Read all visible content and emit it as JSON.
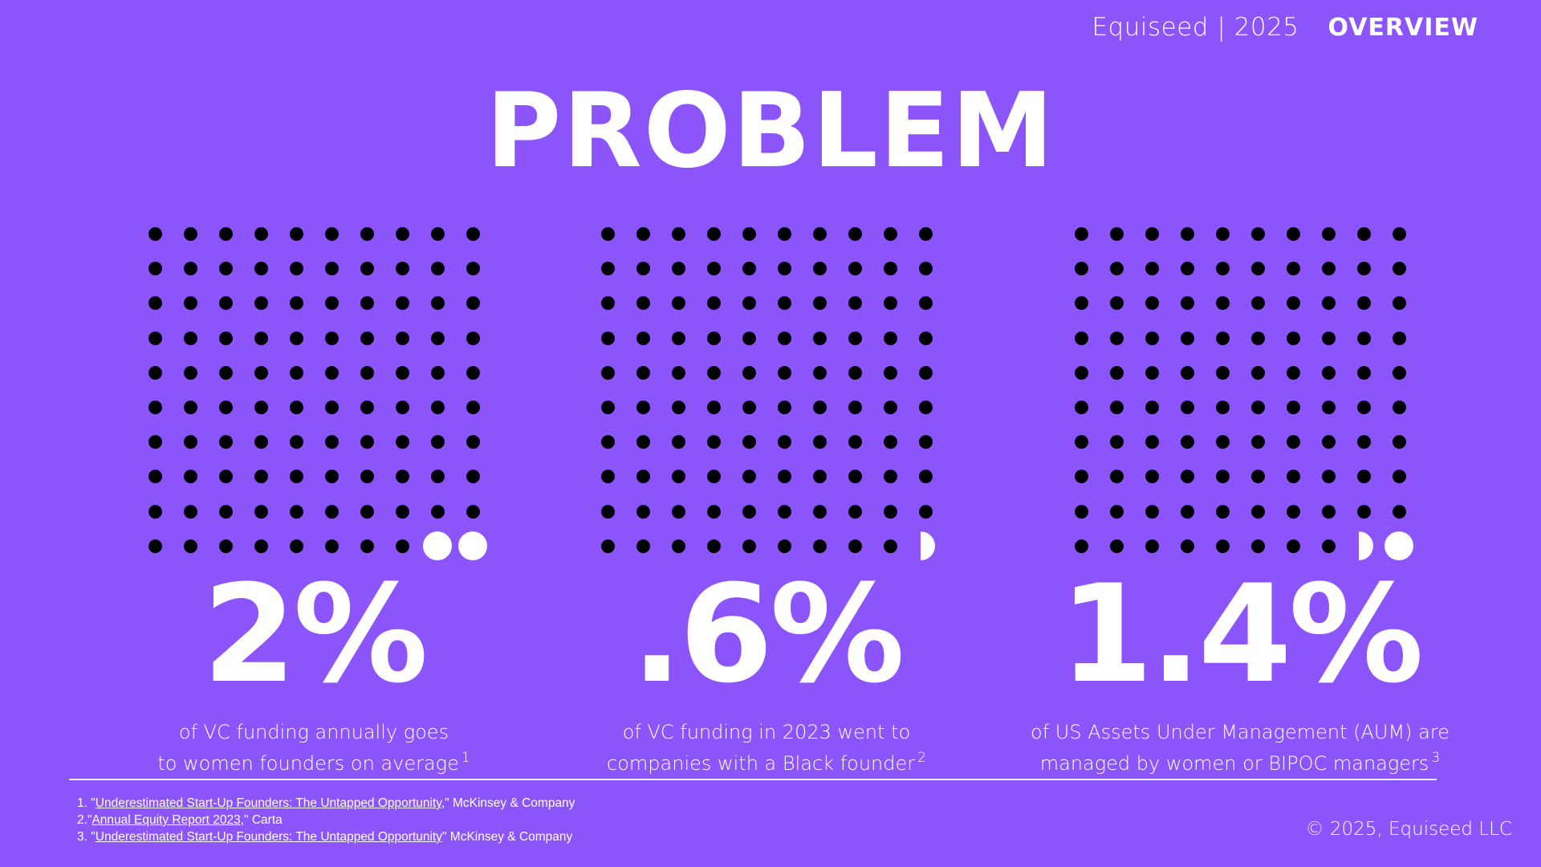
{
  "header": {
    "brand": "Equiseed | 2025",
    "section": "OVERVIEW"
  },
  "title": "PROBLEM",
  "stats": [
    {
      "value": "2%",
      "line1": "of VC funding annually goes",
      "line2": "to women founders on average",
      "ref": "1",
      "highlight_dots": 2
    },
    {
      "value": ".6%",
      "line1": "of VC funding in 2023 went to",
      "line2": "companies with a Black founder",
      "ref": "2",
      "highlight_dots": 0.6
    },
    {
      "value": "1.4%",
      "line1": "of US Assets Under Management (AUM) are",
      "line2": "managed by women or BIPOC managers",
      "ref": "3",
      "highlight_dots": 1.4
    }
  ],
  "footnotes": [
    {
      "num": "1.",
      "pre": "\"",
      "link": "Underestimated Start-Up Founders: The Untapped Opportunity",
      "post": ",\" McKinsey & Company"
    },
    {
      "num": "2.",
      "pre": "\"",
      "link": "Annual Equity Report 2023",
      "post": ",\" Carta"
    },
    {
      "num": "3.",
      "pre": " \"",
      "link": "Underestimated Start-Up Founders: The Untapped Opportunity",
      "post": "\" McKinsey & Company"
    }
  ],
  "copyright": "© 2025, Equiseed LLC",
  "colors": {
    "background": "#8c55fc",
    "dot": "#000000",
    "highlight": "#ffffff"
  }
}
